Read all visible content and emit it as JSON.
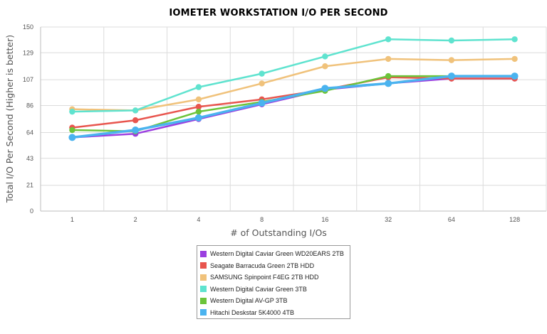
{
  "chart_data": {
    "type": "line",
    "title": "IOMETER WORKSTATION I/O PER SECOND",
    "xlabel": "# of Outstanding I/Os",
    "ylabel": "Total I/O Per Second (Higher is better)",
    "categories": [
      "1",
      "2",
      "4",
      "8",
      "16",
      "32",
      "64",
      "128"
    ],
    "yticks": [
      "0",
      "21",
      "43",
      "64",
      "86",
      "107",
      "129",
      "150"
    ],
    "ylim": [
      0,
      150
    ],
    "grid": true,
    "legend_position": "bottom",
    "series": [
      {
        "name": "Western Digital Caviar Green WD20EARS 2TB",
        "color": "#9b3fe0",
        "values": [
          60,
          63,
          75,
          87,
          99,
          104,
          108,
          108
        ]
      },
      {
        "name": "Seagate Barracuda Green 2TB HDD",
        "color": "#e8554e",
        "values": [
          68,
          74,
          85,
          91,
          99,
          109,
          108,
          108
        ]
      },
      {
        "name": "SAMSUNG Spinpoint F4EG 2TB HDD",
        "color": "#f0c27b",
        "values": [
          83,
          82,
          91,
          104,
          118,
          124,
          123,
          124
        ]
      },
      {
        "name": "Western Digital Caviar Green 3TB",
        "color": "#5fe3cf",
        "values": [
          81,
          82,
          101,
          112,
          126,
          140,
          139,
          140
        ]
      },
      {
        "name": "Western Digital AV-GP 3TB",
        "color": "#6cc43a",
        "values": [
          66,
          65,
          81,
          89,
          98,
          110,
          110,
          110
        ]
      },
      {
        "name": "Hitachi Deskstar 5K4000 4TB",
        "color": "#4ab3ef",
        "values": [
          60,
          66,
          76,
          88,
          100,
          104,
          110,
          110
        ]
      }
    ]
  }
}
